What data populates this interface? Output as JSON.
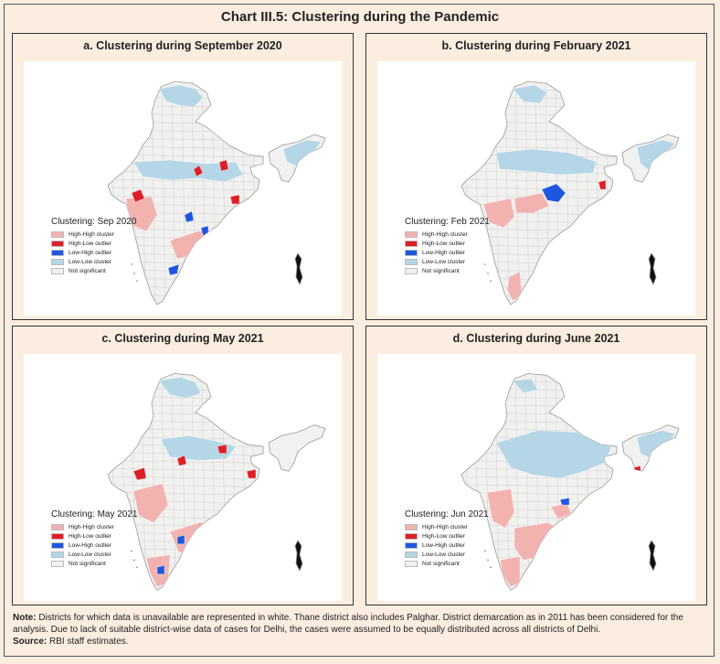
{
  "title": "Chart III.5: Clustering during the Pandemic",
  "colors": {
    "high_high": "#f2b3b0",
    "high_low": "#dd1f26",
    "low_high": "#1f56e0",
    "low_low": "#b5d6e6",
    "not_significant": "#f1f1ef",
    "border": "#9a9a9a"
  },
  "legend_items": [
    {
      "label": "High-High cluster",
      "color": "#f2b3b0"
    },
    {
      "label": "High-Low outlier",
      "color": "#dd1f26"
    },
    {
      "label": "Low-High outlier",
      "color": "#1f56e0"
    },
    {
      "label": "Low-Low cluster",
      "color": "#b5d6e6"
    },
    {
      "label": "Not significant",
      "color": "#f1f1ef"
    }
  ],
  "panels": [
    {
      "title": "a. Clustering during September 2020",
      "legend_title": "Clustering: Sep 2020"
    },
    {
      "title": "b. Clustering during February 2021",
      "legend_title": "Clustering: Feb 2021"
    },
    {
      "title": "c. Clustering during May 2021",
      "legend_title": "Clustering: May 2021"
    },
    {
      "title": "d. Clustering during June 2021",
      "legend_title": "Clustering: Jun 2021"
    }
  ],
  "note": {
    "label": "Note:",
    "text": "Districts for which data is unavailable are represented in white. Thane district also includes Palghar. District demarcation as in 2011 has been considered for the analysis. Due to lack of suitable district-wise data of cases for Delhi, the cases were assumed to be equally distributed across all districts of Delhi."
  },
  "source": {
    "label": "Source:",
    "text": "RBI staff estimates."
  }
}
